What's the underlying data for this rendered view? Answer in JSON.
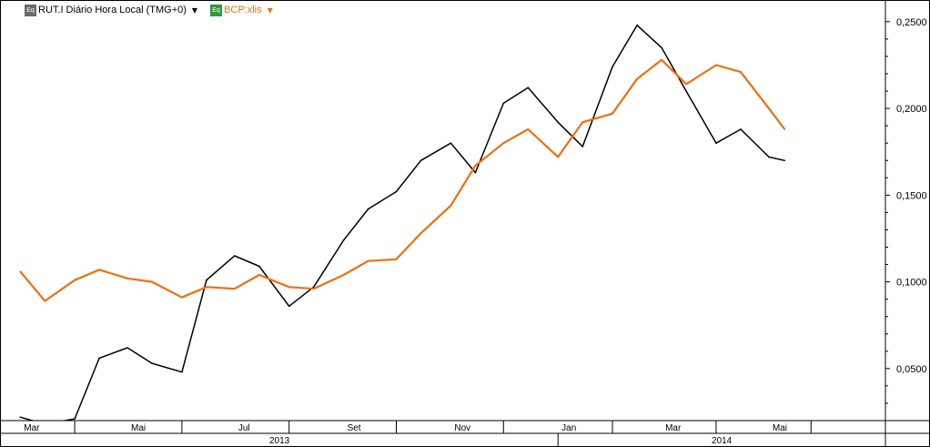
{
  "legend": {
    "series1_label": "RUT.I Diário Hora Local (TMG+0)",
    "series1_icon": "equity-icon",
    "series2_label": "BCP:xlis",
    "series2_icon": "equity-icon",
    "dropdown_glyph": "▼"
  },
  "colors": {
    "series1": "#000000",
    "series2": "#ee6f10",
    "grid": "#bfbfbf"
  },
  "chart_data": {
    "type": "line",
    "title": "",
    "xlabel": "",
    "ylabel": "",
    "ylim": [
      0.02,
      0.262
    ],
    "y_ticks": [
      "0,2500",
      "0,2000",
      "0,1500",
      "0,1000",
      "0,0500"
    ],
    "y_tick_values": [
      0.25,
      0.2,
      0.15,
      0.1,
      0.05
    ],
    "grid": false,
    "legend_position": "top-left",
    "x_month_labels": [
      "Mar",
      "Mai",
      "Jul",
      "Set",
      "Nov",
      "Jan",
      "Mar",
      "Mai"
    ],
    "x_year_labels": [
      "2013",
      "2014"
    ],
    "x": [
      "2013-03-01",
      "2013-03-15",
      "2013-04-01",
      "2013-04-15",
      "2013-05-01",
      "2013-05-15",
      "2013-06-01",
      "2013-06-15",
      "2013-07-01",
      "2013-07-15",
      "2013-08-01",
      "2013-08-15",
      "2013-09-01",
      "2013-09-15",
      "2013-10-01",
      "2013-10-15",
      "2013-11-01",
      "2013-11-15",
      "2013-12-01",
      "2013-12-15",
      "2014-01-01",
      "2014-01-15",
      "2014-02-01",
      "2014-02-15",
      "2014-03-01",
      "2014-03-15",
      "2014-04-01",
      "2014-04-15",
      "2014-05-01",
      "2014-05-10"
    ],
    "series": [
      {
        "name": "RUT.I Diário Hora Local (TMG+0)",
        "values": [
          0.022,
          0.018,
          0.021,
          0.056,
          0.062,
          0.053,
          0.048,
          0.101,
          0.115,
          0.109,
          0.086,
          0.097,
          0.124,
          0.142,
          0.152,
          0.17,
          0.18,
          0.163,
          0.203,
          0.212,
          0.192,
          0.178,
          0.224,
          0.248,
          0.235,
          0.21,
          0.18,
          0.188,
          0.172,
          0.17
        ]
      },
      {
        "name": "BCP:xlis",
        "values": [
          0.106,
          0.089,
          0.101,
          0.107,
          0.102,
          0.1,
          0.091,
          0.097,
          0.096,
          0.104,
          0.097,
          0.096,
          0.104,
          0.112,
          0.113,
          0.128,
          0.144,
          0.167,
          0.18,
          0.188,
          0.172,
          0.192,
          0.197,
          0.217,
          0.228,
          0.214,
          0.225,
          0.221,
          0.2,
          0.188
        ]
      }
    ]
  }
}
